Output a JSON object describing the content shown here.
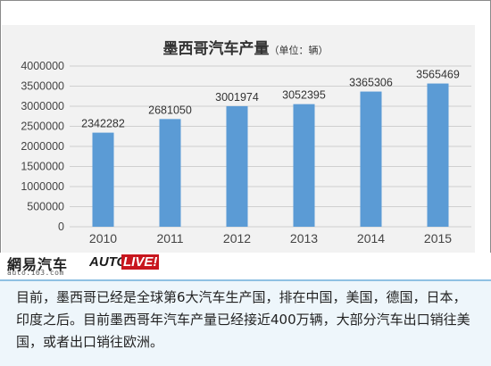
{
  "chart_data": {
    "type": "bar",
    "title": "墨西哥汽车产量",
    "unit_note": "（单位：辆）",
    "categories": [
      "2010",
      "2011",
      "2012",
      "2013",
      "2014",
      "2015"
    ],
    "values": [
      2342282,
      2681050,
      3001974,
      3052395,
      3365306,
      3565469
    ],
    "data_labels": [
      "2342282",
      "2681050",
      "3001974",
      "3052395",
      "3365306",
      "3565469"
    ],
    "yticks": [
      "0",
      "500000",
      "1000000",
      "1500000",
      "2000000",
      "2500000",
      "3000000",
      "3500000",
      "4000000"
    ],
    "ylim": [
      0,
      4000000
    ],
    "grid": true,
    "bar_color": "#5b9bd5"
  },
  "logos": {
    "netease": "網易汽车",
    "netease_url": "auto.163.com",
    "autolive_a": "AUTO",
    "autolive_b": "LIVE!"
  },
  "caption": "目前，墨西哥已经是全球第6大汽车生产国，排在中国，美国，德国，日本，印度之后。目前墨西哥年汽车产量已经接近400万辆，大部分汽车出口销往美国，或者出口销往欧洲。"
}
